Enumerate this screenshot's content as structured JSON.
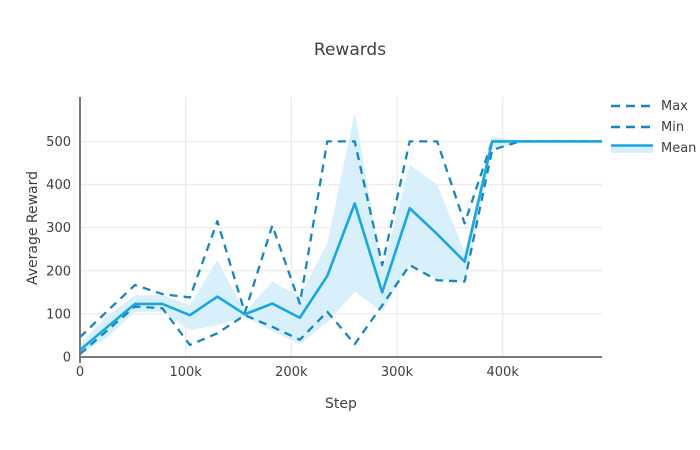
{
  "title": "Rewards",
  "axes": {
    "x_title": "Step",
    "y_title": "Average Reward"
  },
  "legend": {
    "items": [
      {
        "label": "Max",
        "style": "dashed"
      },
      {
        "label": "Min",
        "style": "dashed"
      },
      {
        "label": "Mean",
        "style": "solid-band"
      }
    ]
  },
  "chart_data": {
    "type": "line",
    "title": "Rewards",
    "xlabel": "Step",
    "ylabel": "Average Reward",
    "grid": true,
    "legend_position": "right",
    "x_range": [
      0,
      494000
    ],
    "y_range": [
      0,
      603
    ],
    "x_ticks": {
      "values": [
        0,
        100000,
        200000,
        300000,
        400000
      ],
      "labels": [
        "0",
        "100k",
        "200k",
        "300k",
        "400k"
      ]
    },
    "y_ticks": {
      "values": [
        0,
        100,
        200,
        300,
        400,
        500
      ],
      "labels": [
        "0",
        "100",
        "200",
        "300",
        "400",
        "500"
      ]
    },
    "x": [
      0,
      26000,
      52000,
      78000,
      104000,
      130000,
      156000,
      182000,
      208000,
      234000,
      260000,
      286000,
      312000,
      338000,
      364000,
      390000,
      416000,
      442000,
      468000,
      494000
    ],
    "series": [
      {
        "name": "Max",
        "style": "dashed",
        "values": [
          46,
          107,
          167,
          146,
          138,
          315,
          103,
          305,
          124,
          500,
          500,
          213,
          500,
          500,
          310,
          500,
          500,
          500,
          500,
          500
        ]
      },
      {
        "name": "Min",
        "style": "dashed",
        "values": [
          7,
          62,
          117,
          113,
          28,
          55,
          97,
          70,
          40,
          105,
          30,
          120,
          213,
          178,
          175,
          480,
          500,
          500,
          500,
          500
        ]
      },
      {
        "name": "Mean",
        "style": "solid",
        "values": [
          16,
          70,
          123,
          123,
          97,
          140,
          99,
          124,
          91,
          188,
          356,
          150,
          345,
          285,
          221,
          500,
          500,
          500,
          500,
          500
        ]
      }
    ],
    "band": {
      "name": "std-band",
      "top": [
        30,
        96,
        143,
        143,
        120,
        225,
        104,
        175,
        140,
        264,
        568,
        200,
        445,
        400,
        243,
        512,
        500,
        500,
        500,
        500
      ],
      "bottom": [
        5,
        45,
        105,
        105,
        62,
        74,
        94,
        60,
        30,
        80,
        151,
        105,
        215,
        180,
        174,
        480,
        500,
        500,
        500,
        500
      ]
    },
    "colors": {
      "solid_line": "#1aa7e0",
      "dashed_line": "#1886be",
      "band_fill": "#d7f0fb",
      "grid": "#e9ebee",
      "axis": "#7a7a7a",
      "text": "#3f3f3f"
    }
  }
}
